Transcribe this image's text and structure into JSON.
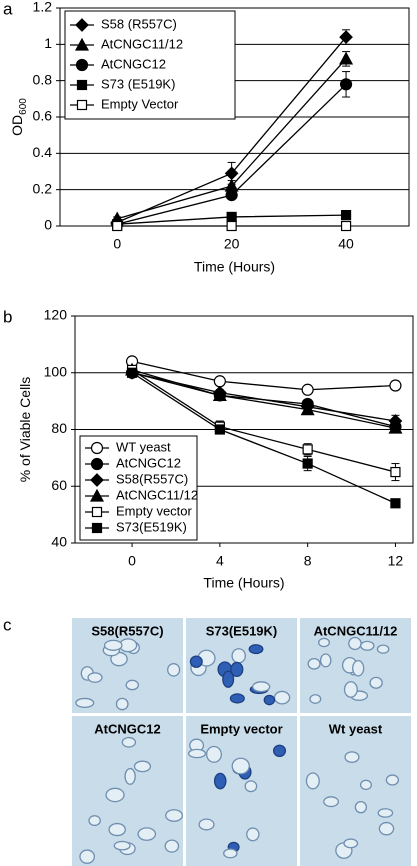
{
  "chart_data": [
    {
      "type": "line",
      "panel_label": "a",
      "xlabel": "Time (Hours)",
      "ylabel": {
        "text": "OD",
        "subscript": "600"
      },
      "x": [
        0,
        20,
        40
      ],
      "xlim": [
        -10,
        51
      ],
      "xticks": [
        0,
        20,
        40
      ],
      "ylim": [
        0,
        1.2
      ],
      "yticks": [
        0,
        0.2,
        0.4,
        0.6,
        0.8,
        1,
        1.2
      ],
      "grid": true,
      "legend": "upper left",
      "series": [
        {
          "name": "S58 (R557C)",
          "color": "#000000",
          "marker": "diamond",
          "values": [
            0.02,
            0.29,
            1.04
          ],
          "errors": [
            0.01,
            0.06,
            0.04
          ]
        },
        {
          "name": "AtCNGC11/12",
          "color": "#000000",
          "marker": "triangle",
          "values": [
            0.04,
            0.22,
            0.92
          ],
          "errors": [
            0.01,
            0.03,
            0.04
          ]
        },
        {
          "name": "AtCNGC12",
          "color": "#000000",
          "marker": "circle",
          "values": [
            0.01,
            0.17,
            0.78
          ],
          "errors": [
            0.01,
            0.02,
            0.07
          ]
        },
        {
          "name": "S73 (E519K)",
          "color": "#000000",
          "marker": "square",
          "values": [
            0.01,
            0.05,
            0.06
          ],
          "errors": [
            0.01,
            0.01,
            0.01
          ]
        },
        {
          "name": "Empty Vector",
          "color": "#000000",
          "marker": "square-open",
          "values": [
            0,
            0,
            0
          ],
          "errors": [
            0.005,
            0.005,
            0.005
          ]
        }
      ]
    },
    {
      "type": "line",
      "panel_label": "b",
      "xlabel": "Time (Hours)",
      "ylabel": {
        "text": "% of Viable Cells"
      },
      "x": [
        0,
        4,
        8,
        12
      ],
      "xlim": [
        -2.6,
        12.8
      ],
      "xticks": [
        0,
        4,
        8,
        12
      ],
      "ylim": [
        40,
        120
      ],
      "yticks": [
        40,
        60,
        80,
        100,
        120
      ],
      "grid": true,
      "legend": "lower left",
      "series": [
        {
          "name": "WT yeast",
          "color": "#000000",
          "marker": "circle-open",
          "values": [
            104,
            97,
            94,
            95.5
          ],
          "errors": [
            1,
            1,
            1,
            1.5
          ]
        },
        {
          "name": "AtCNGC12",
          "color": "#000000",
          "marker": "circle",
          "values": [
            100,
            92,
            89,
            81
          ],
          "errors": [
            1,
            1.5,
            1,
            1.5
          ]
        },
        {
          "name": "S58(R557C)",
          "color": "#000000",
          "marker": "diamond",
          "values": [
            100,
            93,
            88,
            83
          ],
          "errors": [
            1,
            1,
            1,
            2
          ]
        },
        {
          "name": "AtCNGC11/12",
          "color": "#000000",
          "marker": "triangle",
          "values": [
            101,
            92,
            87,
            80.5
          ],
          "errors": [
            1,
            1,
            1,
            1.5
          ]
        },
        {
          "name": "Empty vector",
          "color": "#000000",
          "marker": "square-open",
          "values": [
            101,
            81,
            73,
            65
          ],
          "errors": [
            1,
            2,
            2,
            3
          ]
        },
        {
          "name": "S73(E519K)",
          "color": "#000000",
          "marker": "square",
          "values": [
            100,
            80,
            68,
            54
          ],
          "errors": [
            1,
            1.5,
            2.5,
            1.5
          ]
        }
      ]
    }
  ],
  "micrographs": {
    "panel_label": "c",
    "tiles": [
      "S58(R557C)",
      "S73(E519K)",
      "AtCNGC11/12",
      "AtCNGC12",
      "Empty vector",
      "Wt yeast"
    ]
  }
}
